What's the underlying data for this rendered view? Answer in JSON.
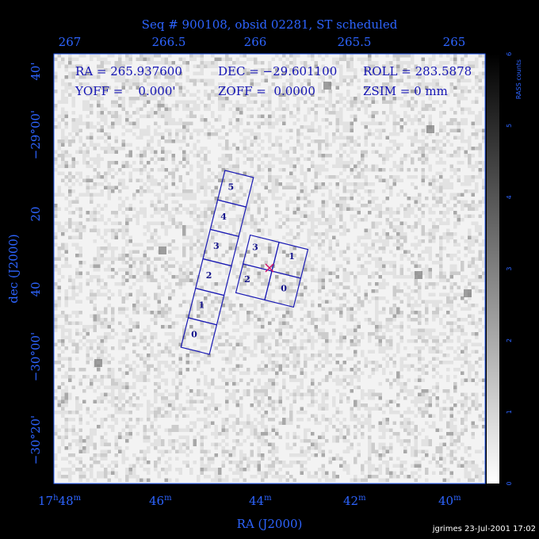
{
  "title": "Seq # 900108, obsid 02281, ST scheduled",
  "top_ticks": [
    "267",
    "266.5",
    "266",
    "265.5",
    "265"
  ],
  "bottom_ticks": [
    [
      "17",
      "h",
      "48",
      "m"
    ],
    [
      "46",
      "m"
    ],
    [
      "44",
      "m"
    ],
    [
      "42",
      "m"
    ],
    [
      "40",
      "m"
    ]
  ],
  "left_ticks": [
    "40'",
    "−29°00'",
    "20",
    "40",
    "−30°00'",
    "−30°20'"
  ],
  "x_axis_label": "RA (J2000)",
  "y_axis_label": "dec (J2000)",
  "info": [
    [
      "RA = 265.937600",
      "DEC = −29.601100",
      "ROLL = 283.5878"
    ],
    [
      "YOFF =    0.000'",
      "ZOFF =  0.0000",
      "ZSIM = 0 mm"
    ]
  ],
  "colorbar": {
    "label": "RASS counts",
    "ticks": [
      "0",
      "1",
      "2",
      "3",
      "4",
      "5",
      "6"
    ]
  },
  "acis_s_chips": [
    "0",
    "1",
    "2",
    "3",
    "4",
    "5"
  ],
  "acis_i_chips": [
    "3",
    "1",
    "2",
    "0"
  ],
  "footer": "jgrimes 23-Jul-2001 17:02"
}
